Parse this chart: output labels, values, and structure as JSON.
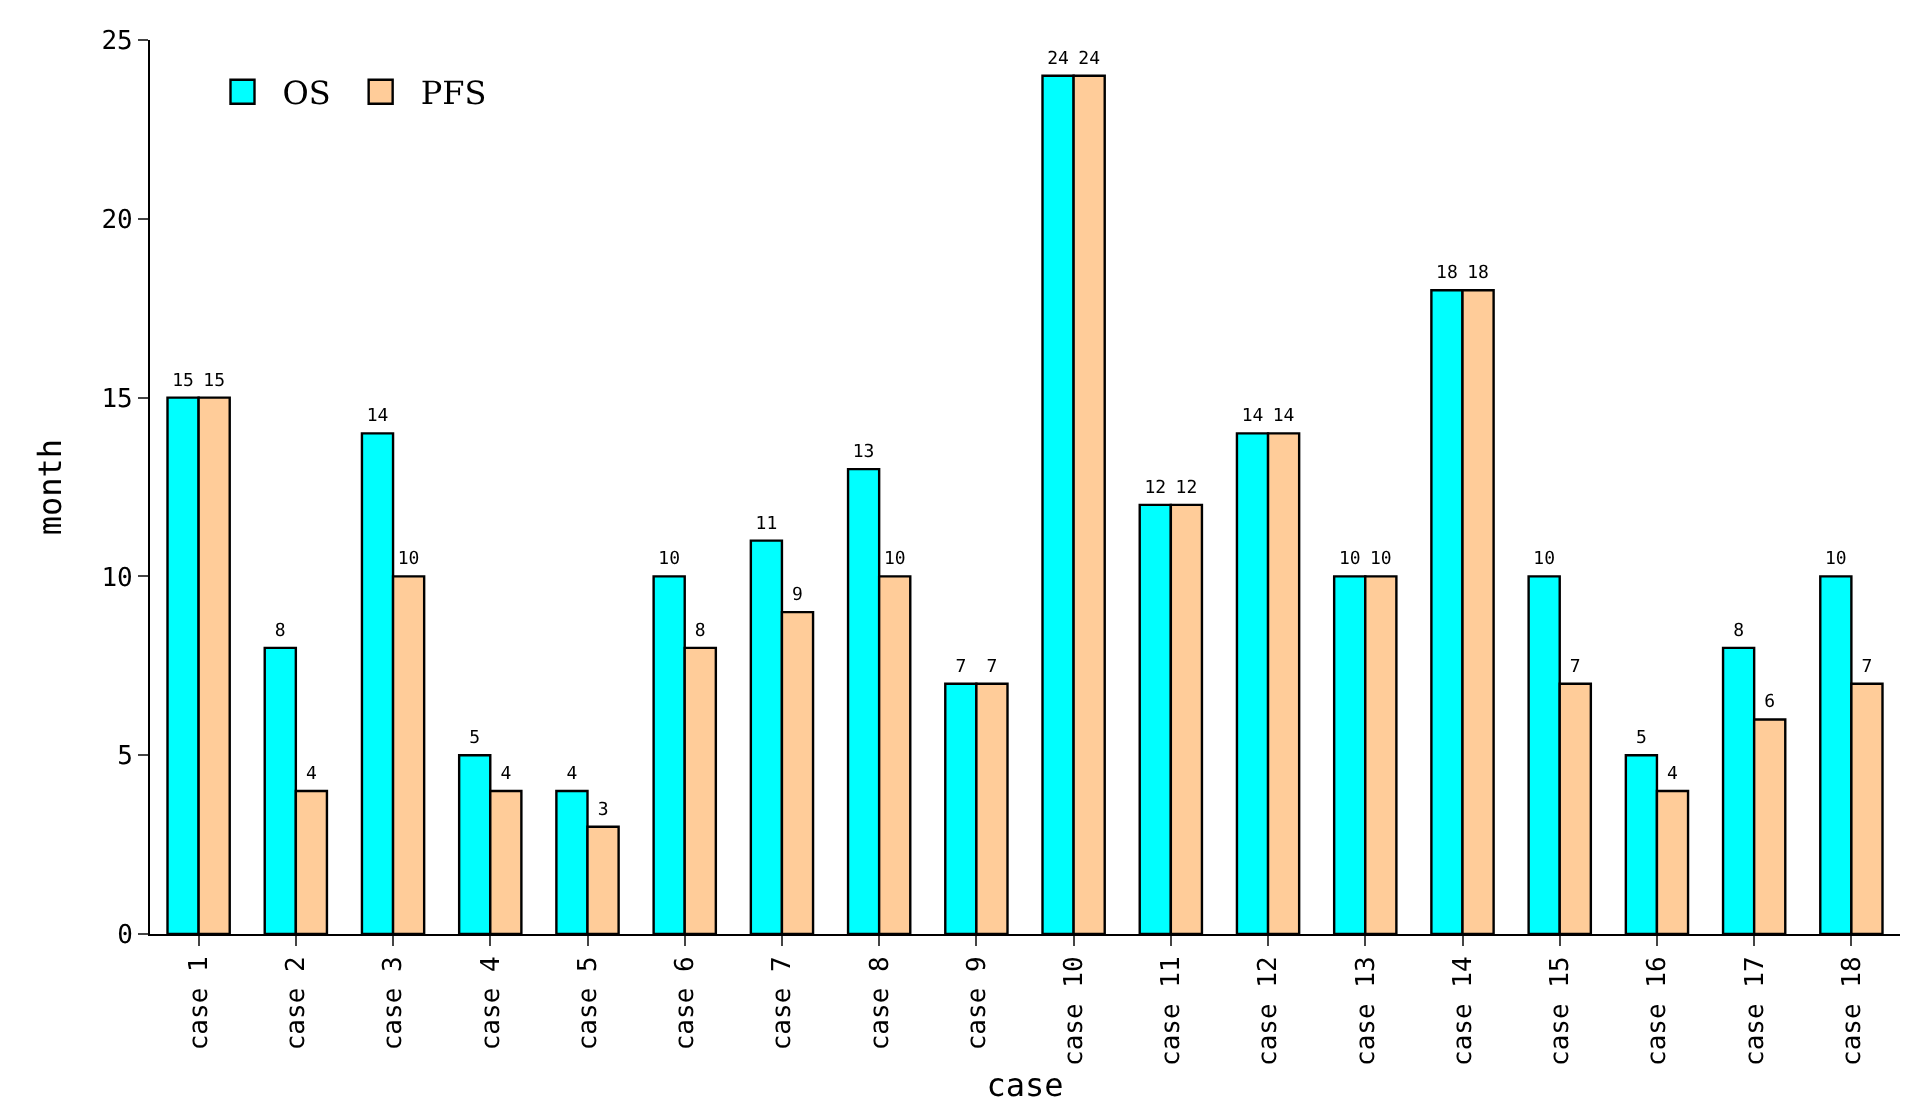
{
  "chart_data": {
    "type": "bar",
    "xlabel": "case",
    "ylabel": "month",
    "categories": [
      "case 1",
      "case 2",
      "case 3",
      "case 4",
      "case 5",
      "case 6",
      "case 7",
      "case 8",
      "case 9",
      "case 10",
      "case 11",
      "case 12",
      "case 13",
      "case 14",
      "case 15",
      "case 16",
      "case 17",
      "case 18"
    ],
    "series": [
      {
        "name": "OS",
        "color": "#00ffff",
        "values": [
          15,
          8,
          14,
          5,
          4,
          10,
          11,
          13,
          7,
          24,
          12,
          14,
          10,
          18,
          10,
          5,
          8,
          10
        ]
      },
      {
        "name": "PFS",
        "color": "#ffcc99",
        "values": [
          15,
          4,
          10,
          4,
          3,
          8,
          9,
          10,
          7,
          24,
          12,
          14,
          10,
          18,
          7,
          4,
          6,
          7
        ]
      }
    ],
    "ylim": [
      0,
      25
    ],
    "yticks": [
      0,
      5,
      10,
      15,
      20,
      25
    ],
    "legend": "top left",
    "data_labels": true
  }
}
